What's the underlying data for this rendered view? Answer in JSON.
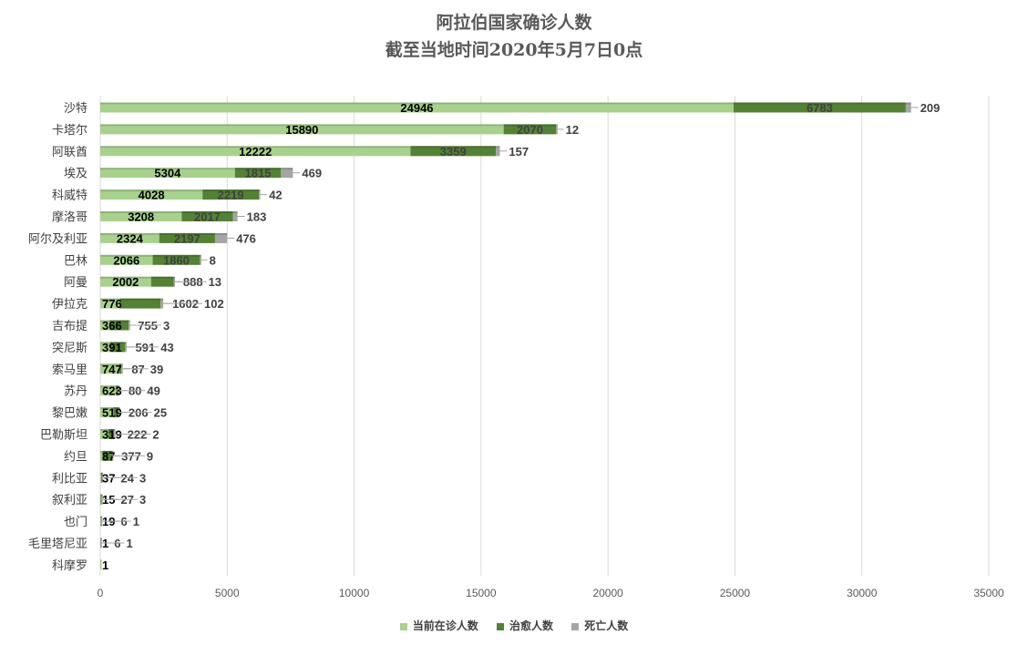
{
  "chart_data": {
    "type": "bar",
    "orientation": "horizontal",
    "stacked": true,
    "title": "阿拉伯国家确诊人数",
    "subtitle": "截至当地时间2020年5月7日0点",
    "categories": [
      "沙特",
      "卡塔尔",
      "阿联酋",
      "埃及",
      "科威特",
      "摩洛哥",
      "阿尔及利亚",
      "巴林",
      "阿曼",
      "伊拉克",
      "吉布提",
      "突尼斯",
      "索马里",
      "苏丹",
      "黎巴嫩",
      "巴勒斯坦",
      "约旦",
      "利比亚",
      "叙利亚",
      "也门",
      "毛里塔尼亚",
      "科摩罗"
    ],
    "series": [
      {
        "name": "当前在诊人数",
        "color": "#a9d18e",
        "values": [
          24946,
          15890,
          12222,
          5304,
          4028,
          3208,
          2324,
          2066,
          2002,
          776,
          366,
          391,
          747,
          623,
          519,
          319,
          87,
          37,
          15,
          19,
          1,
          1
        ]
      },
      {
        "name": "治愈人数",
        "color": "#548235",
        "values": [
          6783,
          2070,
          3359,
          1815,
          2219,
          2017,
          2197,
          1860,
          888,
          1602,
          755,
          591,
          87,
          80,
          206,
          222,
          377,
          24,
          27,
          6,
          6,
          null
        ]
      },
      {
        "name": "死亡人数",
        "color": "#a5a5a5",
        "values": [
          209,
          12,
          157,
          469,
          42,
          183,
          476,
          8,
          13,
          102,
          3,
          43,
          39,
          49,
          25,
          2,
          9,
          3,
          3,
          1,
          1,
          null
        ]
      }
    ],
    "xlim": [
      0,
      35000
    ],
    "xticks": [
      "0",
      "5000",
      "10000",
      "15000",
      "20000",
      "25000",
      "30000",
      "35000"
    ],
    "grid": true,
    "legend_position": "bottom"
  }
}
